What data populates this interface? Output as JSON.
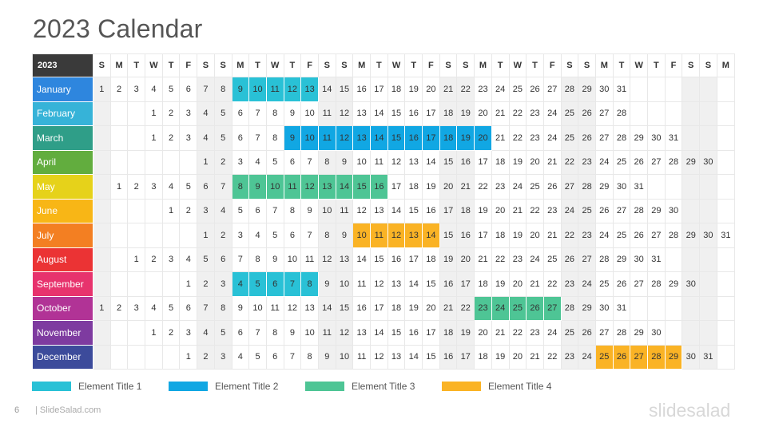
{
  "title": "2023 Calendar",
  "year_label": "2023",
  "weekday_headers": [
    "S",
    "M",
    "T",
    "W",
    "T",
    "F",
    "S",
    "S",
    "M",
    "T",
    "W",
    "T",
    "F",
    "S",
    "S",
    "M",
    "T",
    "W",
    "T",
    "F",
    "S",
    "S",
    "M",
    "T",
    "W",
    "T",
    "F",
    "S",
    "S",
    "M",
    "T",
    "W",
    "T",
    "F",
    "S",
    "S",
    "M"
  ],
  "months": [
    {
      "name": "January",
      "color": "#2e86de",
      "offset": 0,
      "days": 31
    },
    {
      "name": "February",
      "color": "#36b3d8",
      "offset": 3,
      "days": 28
    },
    {
      "name": "March",
      "color": "#2f9e88",
      "offset": 3,
      "days": 31
    },
    {
      "name": "April",
      "color": "#62ad3e",
      "offset": 6,
      "days": 30
    },
    {
      "name": "May",
      "color": "#e6d21a",
      "offset": 1,
      "days": 31
    },
    {
      "name": "June",
      "color": "#f8b616",
      "offset": 4,
      "days": 30
    },
    {
      "name": "July",
      "color": "#f37f22",
      "offset": 6,
      "days": 31
    },
    {
      "name": "August",
      "color": "#eb3334",
      "offset": 2,
      "days": 31
    },
    {
      "name": "September",
      "color": "#e7336d",
      "offset": 5,
      "days": 30
    },
    {
      "name": "October",
      "color": "#b13396",
      "offset": 0,
      "days": 31
    },
    {
      "name": "November",
      "color": "#7e3ba0",
      "offset": 3,
      "days": 30
    },
    {
      "name": "December",
      "color": "#3c4b9b",
      "offset": 5,
      "days": 31
    }
  ],
  "highlights": [
    {
      "month": 0,
      "from": 9,
      "to": 13,
      "color": "#29c1d6"
    },
    {
      "month": 2,
      "from": 9,
      "to": 20,
      "color": "#11a7e3"
    },
    {
      "month": 4,
      "from": 8,
      "to": 16,
      "color": "#4ec595"
    },
    {
      "month": 6,
      "from": 10,
      "to": 14,
      "color": "#fab325"
    },
    {
      "month": 8,
      "from": 4,
      "to": 8,
      "color": "#29c1d6"
    },
    {
      "month": 9,
      "from": 23,
      "to": 27,
      "color": "#4ec595"
    },
    {
      "month": 11,
      "from": 25,
      "to": 29,
      "color": "#fab325"
    }
  ],
  "legend": [
    {
      "label": "Element Title 1",
      "color": "#29c1d6"
    },
    {
      "label": "Element Title 2",
      "color": "#11a7e3"
    },
    {
      "label": "Element Title 3",
      "color": "#4ec595"
    },
    {
      "label": "Element Title 4",
      "color": "#fab325"
    }
  ],
  "footer": {
    "page_number": "6",
    "site": "| SlideSalad.com",
    "brand": "slidesalad"
  }
}
